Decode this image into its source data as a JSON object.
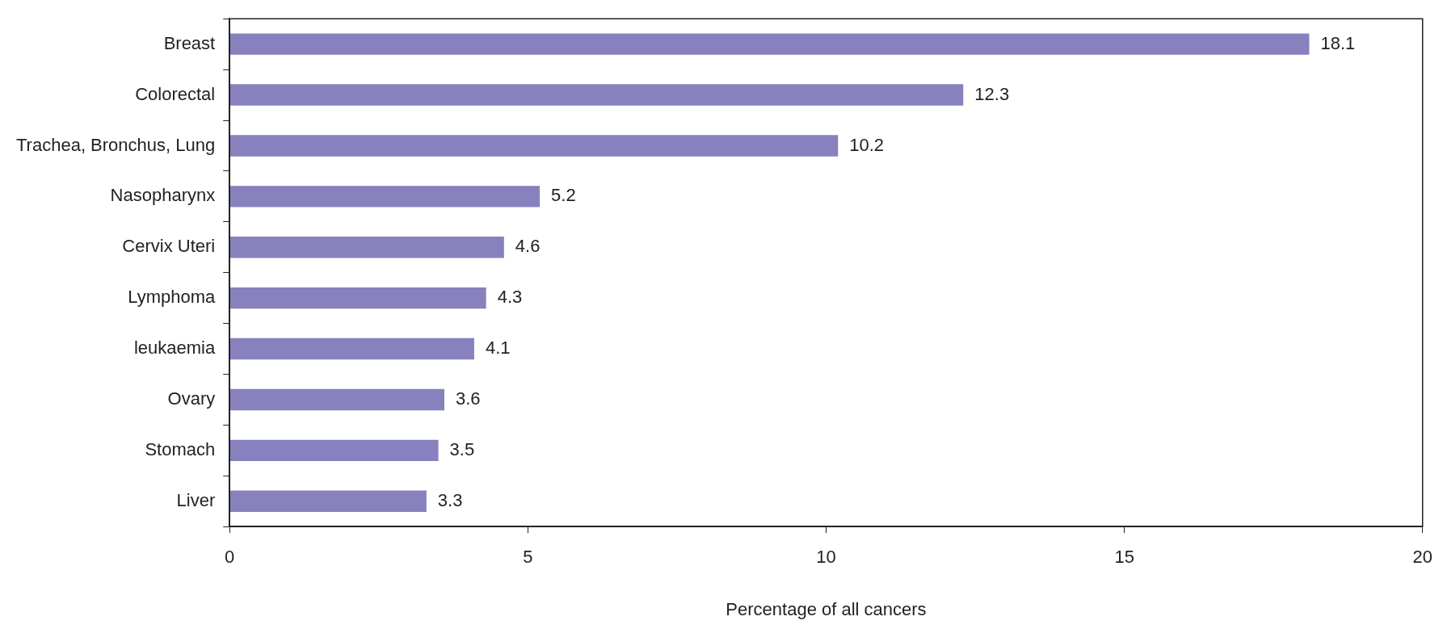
{
  "chart_data": {
    "type": "bar",
    "orientation": "horizontal",
    "xlabel": "Percentage of all cancers",
    "categories": [
      "Breast",
      "Colorectal",
      "Trachea, Bronchus, Lung",
      "Nasopharynx",
      "Cervix Uteri",
      "Lymphoma",
      "leukaemia",
      "Ovary",
      "Stomach",
      "Liver"
    ],
    "values": [
      18.1,
      12.3,
      10.2,
      5.2,
      4.6,
      4.3,
      4.1,
      3.6,
      3.5,
      3.3
    ],
    "color": "#8781bd",
    "xlim": [
      0,
      20
    ],
    "xticks": [
      0,
      5,
      10,
      15,
      20
    ],
    "data_labels": true,
    "legend": false
  }
}
